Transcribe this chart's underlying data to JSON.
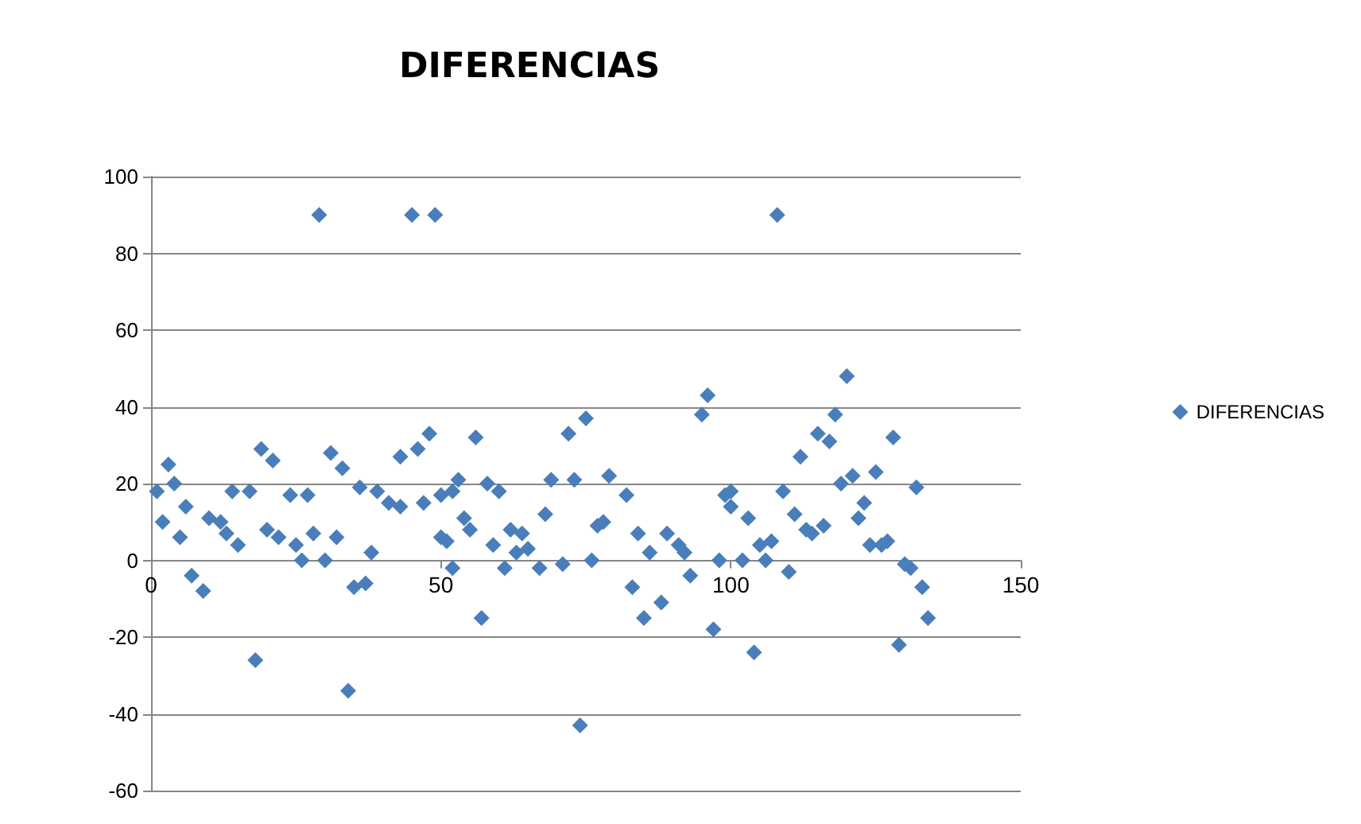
{
  "chart_data": {
    "type": "scatter",
    "title": "DIFERENCIAS",
    "x": [
      1,
      2,
      3,
      4,
      5,
      6,
      7,
      9,
      10,
      12,
      13,
      14,
      15,
      17,
      18,
      19,
      20,
      21,
      22,
      24,
      25,
      26,
      27,
      28,
      29,
      30,
      31,
      32,
      33,
      34,
      35,
      36,
      37,
      38,
      39,
      41,
      43,
      43,
      45,
      46,
      47,
      48,
      49,
      50,
      50,
      51,
      52,
      52,
      53,
      54,
      55,
      56,
      57,
      58,
      59,
      60,
      61,
      62,
      63,
      64,
      65,
      67,
      68,
      69,
      71,
      72,
      73,
      74,
      75,
      76,
      77,
      78,
      79,
      82,
      83,
      84,
      85,
      86,
      88,
      89,
      91,
      92,
      93,
      95,
      96,
      97,
      98,
      99,
      100,
      100,
      102,
      103,
      104,
      105,
      106,
      107,
      108,
      109,
      110,
      111,
      112,
      113,
      114,
      115,
      116,
      117,
      118,
      119,
      120,
      121,
      122,
      123,
      124,
      125,
      126,
      127,
      128,
      129,
      130,
      131,
      132,
      133,
      134
    ],
    "series": [
      {
        "name": "DIFERENCIAS",
        "color": "#4a7ebb",
        "values": [
          18,
          10,
          25,
          20,
          6,
          14,
          -4,
          -8,
          11,
          10,
          7,
          18,
          4,
          18,
          -26,
          29,
          8,
          26,
          6,
          17,
          4,
          0,
          17,
          7,
          90,
          0,
          28,
          6,
          24,
          -34,
          -7,
          19,
          -6,
          2,
          18,
          15,
          14,
          27,
          90,
          29,
          15,
          33,
          90,
          17,
          6,
          5,
          -2,
          18,
          21,
          11,
          8,
          32,
          -15,
          20,
          4,
          18,
          -2,
          8,
          2,
          7,
          3,
          -2,
          12,
          21,
          -1,
          33,
          21,
          -43,
          37,
          0,
          9,
          10,
          22,
          17,
          -7,
          7,
          -15,
          2,
          -11,
          7,
          4,
          2,
          -4,
          38,
          43,
          -18,
          0,
          17,
          14,
          18,
          0,
          11,
          -24,
          4,
          0,
          5,
          90,
          18,
          -3,
          12,
          27,
          8,
          7,
          33,
          9,
          31,
          38,
          20,
          48,
          22,
          11,
          15,
          4,
          23,
          4,
          5,
          32,
          -22,
          -1,
          -2,
          19,
          -7,
          -15
        ]
      }
    ],
    "xlim": [
      0,
      150
    ],
    "xticks": [
      0,
      50,
      100,
      150
    ],
    "ylim": [
      -60,
      100
    ],
    "yticks": [
      -60,
      -40,
      -20,
      0,
      20,
      40,
      60,
      80,
      100
    ],
    "grid": "y",
    "legend": "right",
    "marker": "diamond"
  }
}
